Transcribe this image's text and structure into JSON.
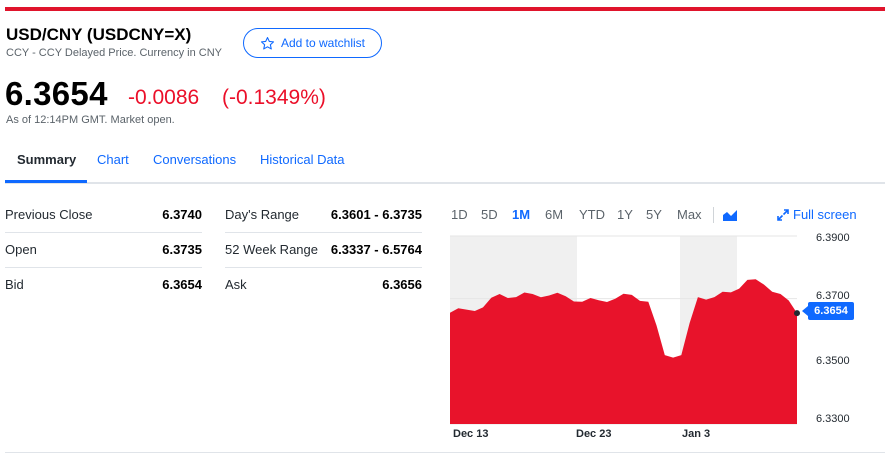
{
  "header": {
    "title": "USD/CNY (USDCNY=X)",
    "subtitle": "CCY - CCY Delayed Price. Currency in CNY",
    "watch_label": "Add to watchlist"
  },
  "quote": {
    "price": "6.3654",
    "change": "-0.0086",
    "change_pct": "(-0.1349%)",
    "as_of": "As of 12:14PM GMT. Market open."
  },
  "tabs": [
    "Summary",
    "Chart",
    "Conversations",
    "Historical Data"
  ],
  "stats": [
    {
      "label": "Previous Close",
      "value": "6.3740"
    },
    {
      "label": "Open",
      "value": "6.3735"
    },
    {
      "label": "Bid",
      "value": "6.3654"
    }
  ],
  "stats2": [
    {
      "label": "Day's Range",
      "value": "6.3601 - 6.3735"
    },
    {
      "label": "52 Week Range",
      "value": "6.3337 - 6.5764"
    },
    {
      "label": "Ask",
      "value": "6.3656"
    }
  ],
  "ranges": [
    "1D",
    "5D",
    "1M",
    "6M",
    "YTD",
    "1Y",
    "5Y",
    "Max"
  ],
  "active_range": "1M",
  "full_screen_label": "Full screen",
  "colors": {
    "accent": "#0f69ff",
    "negative": "#eb0f29",
    "brand_bar": "#e0142c"
  },
  "chart_data": {
    "type": "area",
    "ylim": [
      6.33,
      6.39
    ],
    "yticks": [
      "6.3900",
      "6.3700",
      "6.3500",
      "6.3300"
    ],
    "xticks": [
      "Dec 13",
      "Dec 23",
      "Jan 3"
    ],
    "current_label": "6.3654",
    "x": [
      "Dec 13",
      "Dec 14",
      "Dec 15",
      "Dec 16",
      "Dec 17",
      "Dec 20",
      "Dec 21",
      "Dec 22",
      "Dec 23",
      "Dec 24",
      "Dec 27",
      "Dec 28",
      "Dec 29",
      "Dec 30",
      "Dec 31",
      "Jan 3",
      "Jan 4",
      "Jan 5",
      "Jan 6",
      "Jan 7",
      "Jan 10",
      "Jan 11"
    ],
    "values": [
      6.3655,
      6.3665,
      6.3672,
      6.3715,
      6.3705,
      6.3715,
      6.371,
      6.3708,
      6.369,
      6.3695,
      6.37,
      6.3712,
      6.369,
      6.352,
      6.352,
      6.3705,
      6.3705,
      6.372,
      6.376,
      6.3745,
      6.3715,
      6.3654
    ]
  }
}
